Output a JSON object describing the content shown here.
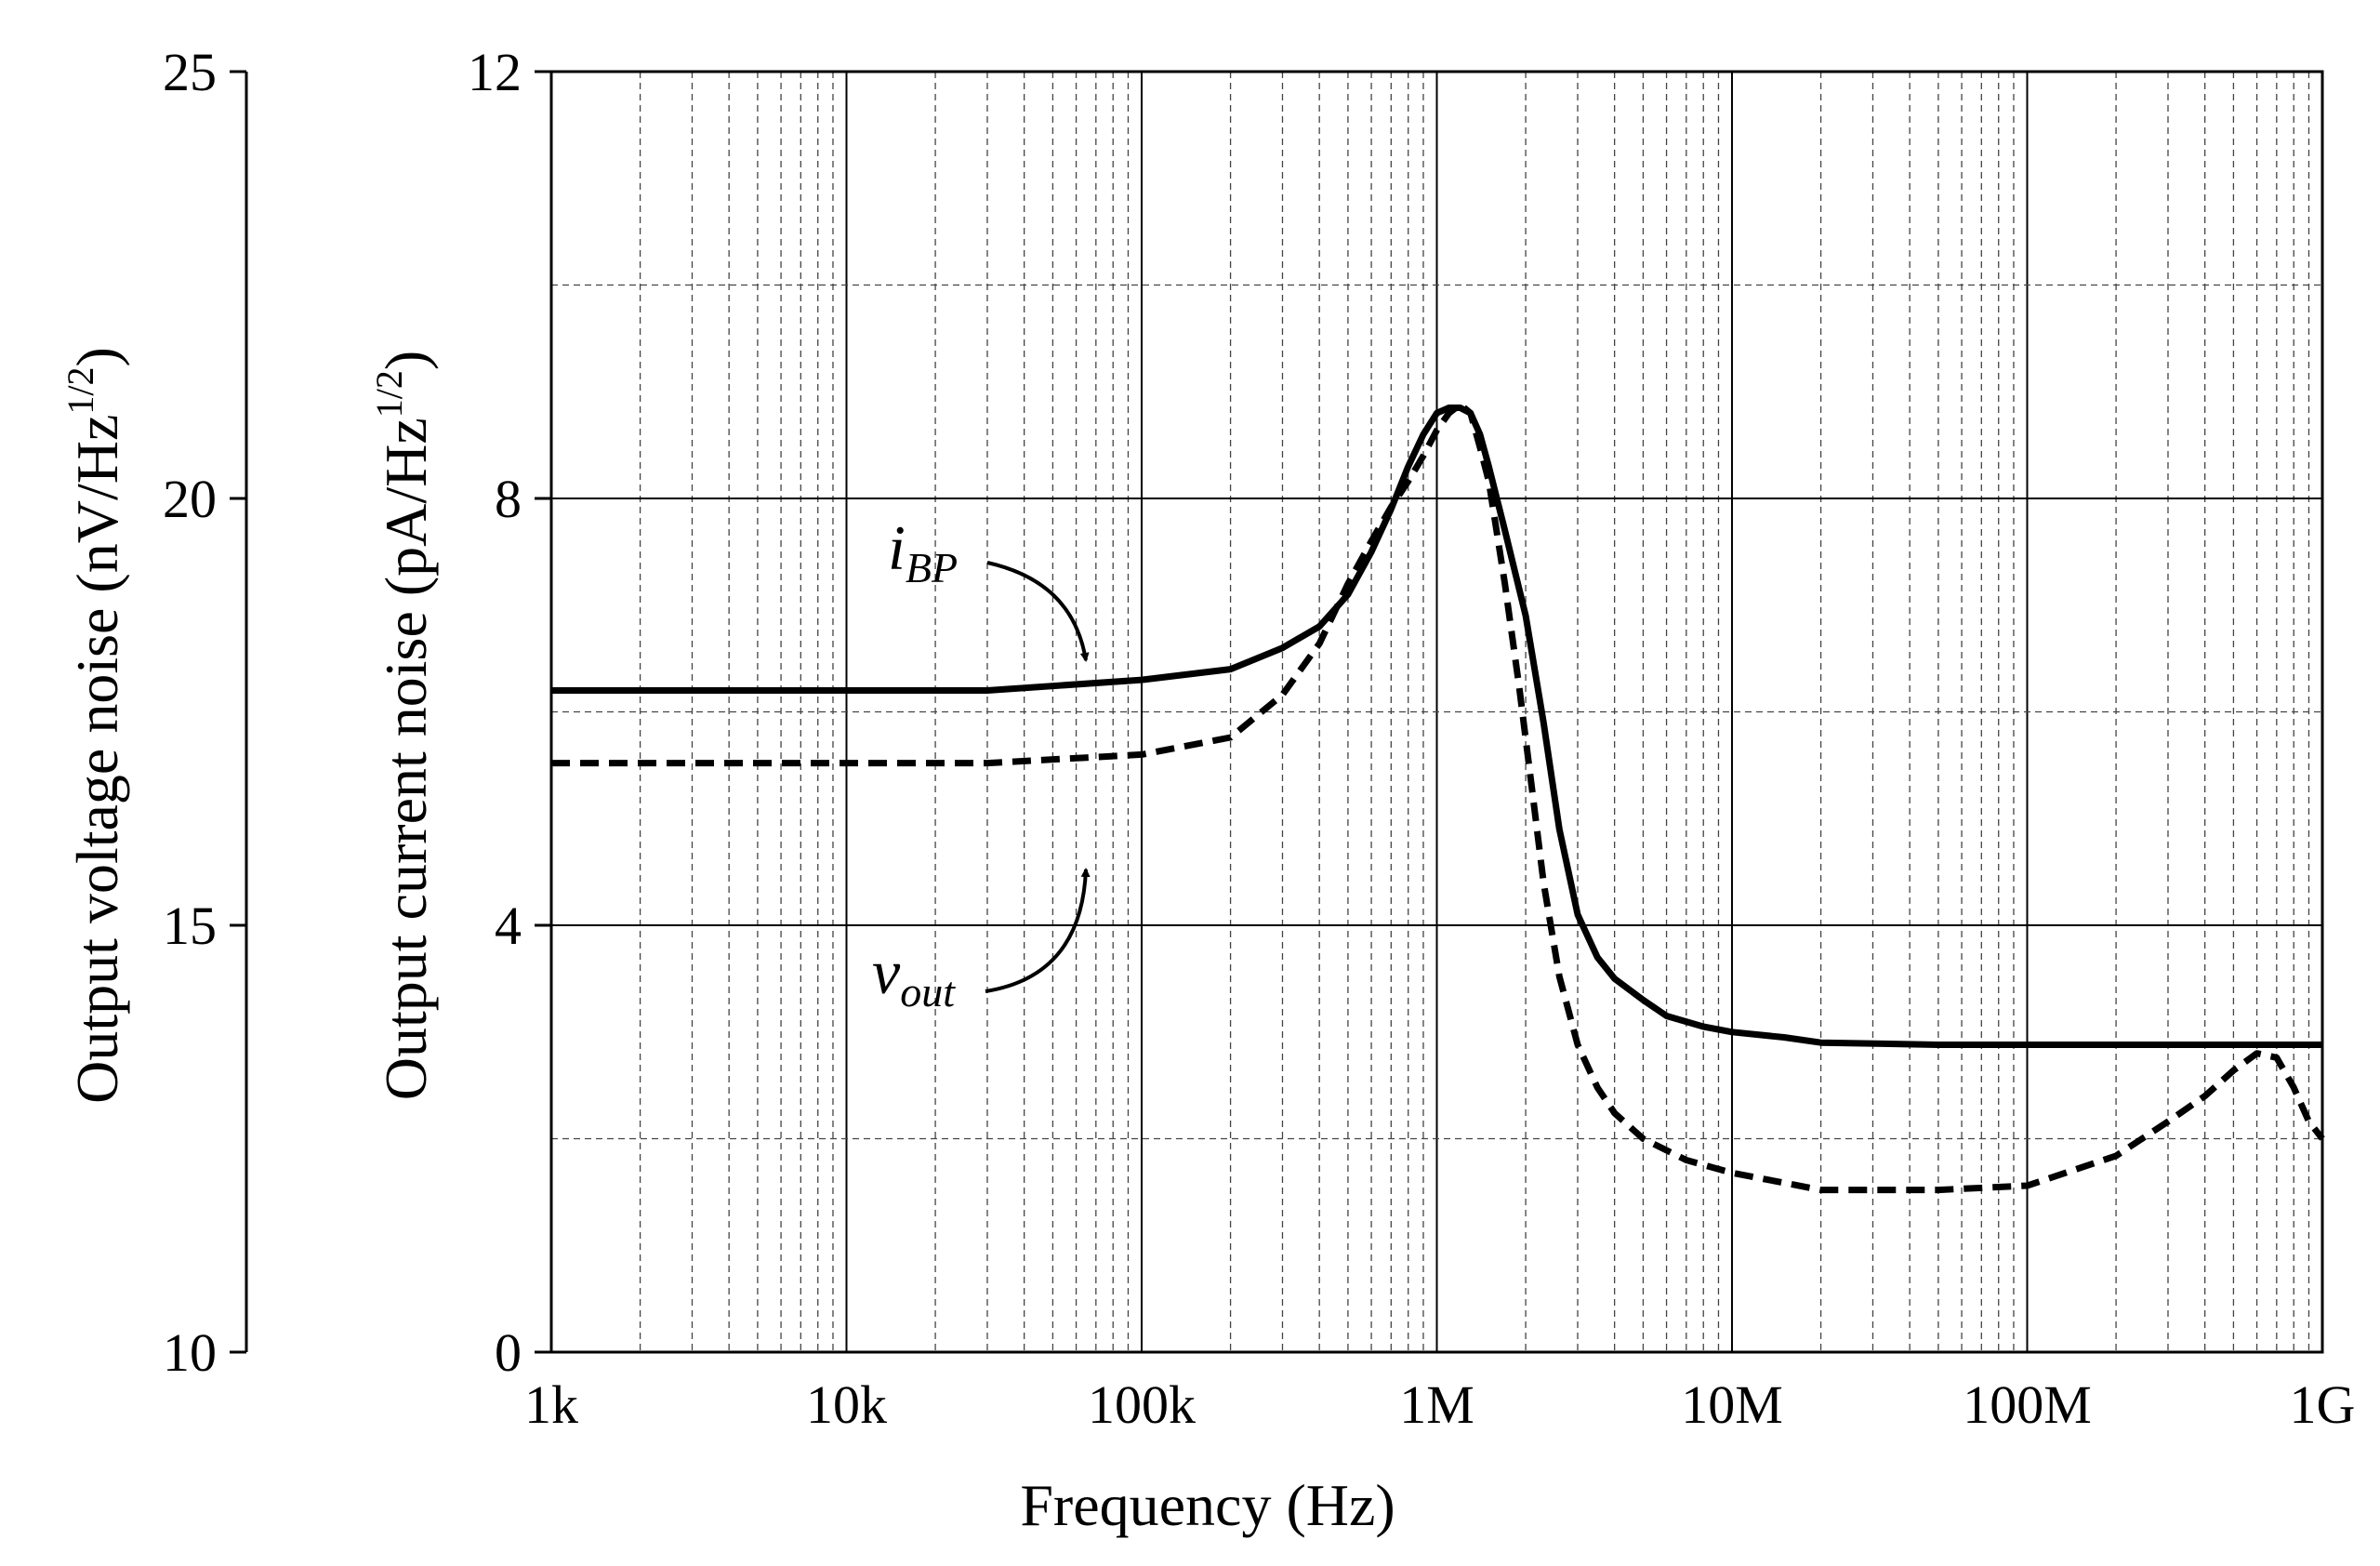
{
  "chart_data": {
    "type": "line",
    "title": "",
    "xlabel": "Frequency (Hz)",
    "x_scale": "log",
    "xlim": [
      1000,
      1000000000
    ],
    "x_ticks": [
      1000,
      10000,
      100000,
      1000000,
      10000000,
      100000000,
      1000000000
    ],
    "x_tick_labels": [
      "1k",
      "10k",
      "100k",
      "1M",
      "10M",
      "100M",
      "1G"
    ],
    "left_axis": {
      "label_prefix": "Output voltage noise (nV/Hz",
      "label_exponent": "1/2",
      "label_suffix": ")",
      "ylim": [
        10,
        25
      ],
      "ticks": [
        10,
        15,
        20,
        25
      ],
      "tick_labels": [
        "10",
        "15",
        "20",
        "25"
      ]
    },
    "right_axis": {
      "label_prefix": "Output current noise (pA/Hz",
      "label_exponent": "1/2",
      "label_suffix": ")",
      "ylim": [
        0,
        12
      ],
      "ticks": [
        0,
        4,
        8,
        12
      ],
      "tick_labels": [
        "0",
        "4",
        "8",
        "12"
      ],
      "minor_grid": [
        2,
        6,
        10
      ]
    },
    "grid": true,
    "series": [
      {
        "name": "iBP",
        "axis": "current",
        "style": "solid",
        "x": [
          1000,
          30000,
          100000,
          200000,
          300000,
          400000,
          500000,
          600000,
          700000,
          800000,
          900000,
          1000000,
          1100000,
          1200000,
          1300000,
          1400000,
          1500000,
          1700000,
          2000000,
          2300000,
          2600000,
          3000000,
          3500000,
          4000000,
          5000000,
          6000000,
          8000000,
          10000000,
          15000000,
          20000000,
          50000000,
          100000000,
          1000000000
        ],
        "values": [
          6.2,
          6.2,
          6.3,
          6.4,
          6.6,
          6.8,
          7.1,
          7.5,
          7.9,
          8.3,
          8.6,
          8.8,
          8.85,
          8.85,
          8.8,
          8.6,
          8.3,
          7.7,
          6.9,
          5.9,
          4.9,
          4.1,
          3.7,
          3.5,
          3.3,
          3.15,
          3.05,
          3.0,
          2.95,
          2.9,
          2.88,
          2.88,
          2.88
        ]
      },
      {
        "name": "vout",
        "axis": "voltage",
        "style": "dashed",
        "x": [
          1000,
          30000,
          100000,
          200000,
          300000,
          400000,
          500000,
          600000,
          700000,
          800000,
          900000,
          1000000,
          1100000,
          1200000,
          1300000,
          1400000,
          1500000,
          1700000,
          1900000,
          2100000,
          2300000,
          2600000,
          3000000,
          3500000,
          4000000,
          5000000,
          7000000,
          10000000,
          20000000,
          50000000,
          100000000,
          200000000,
          300000000,
          400000000,
          500000000,
          600000000,
          700000000,
          800000000,
          900000000,
          1000000000
        ],
        "values": [
          16.9,
          16.9,
          17.0,
          17.2,
          17.7,
          18.3,
          19.0,
          19.5,
          19.9,
          20.2,
          20.5,
          20.8,
          21.0,
          21.1,
          21.0,
          20.6,
          20.2,
          19.0,
          17.8,
          16.6,
          15.5,
          14.4,
          13.6,
          13.1,
          12.8,
          12.5,
          12.25,
          12.1,
          11.9,
          11.9,
          11.95,
          12.3,
          12.7,
          13.0,
          13.3,
          13.5,
          13.45,
          13.1,
          12.7,
          12.5
        ]
      }
    ],
    "annotations": [
      {
        "name": "iBP",
        "main": "i",
        "sub": "BP"
      },
      {
        "name": "vout",
        "main": "v",
        "sub": "out"
      }
    ]
  }
}
